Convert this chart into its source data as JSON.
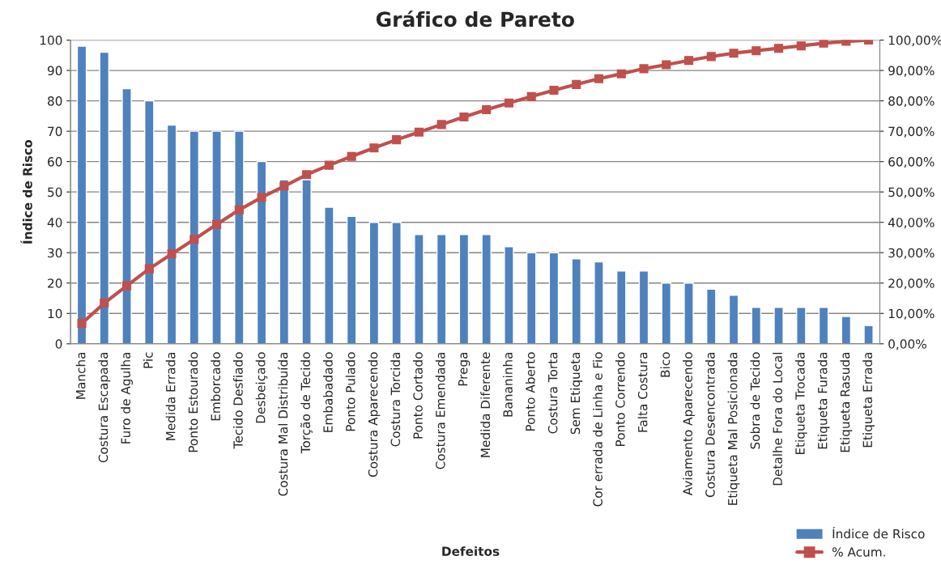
{
  "chart_data": {
    "type": "bar",
    "title": "Gráfico de Pareto",
    "xlabel": "Defeitos",
    "ylabel": "Índice de Risco",
    "categories": [
      "Mancha",
      "Costura Escapada",
      "Furo de Agulha",
      "Pic",
      "Medida Errada",
      "Ponto Estourado",
      "Emborcado",
      "Tecido Desfiado",
      "Desbeiçado",
      "Costura Mal Distribuída",
      "Torção de Tecido",
      "Embabadado",
      "Ponto Pulado",
      "Costura Aparecendo",
      "Costura Torcida",
      "Ponto Cortado",
      "Costura Emendada",
      "Prega",
      "Medida Diferente",
      "Bananinha",
      "Ponto Aberto",
      "Costura Torta",
      "Sem Etiqueta",
      "Cor errada de Linha e Fio",
      "Ponto Correndo",
      "Falta Costura",
      "Bico",
      "Aviamento Aparecendo",
      "Costura Desencontrada",
      "Etiqueta Mal Posicionada",
      "Sobra de Tecido",
      "Detalhe Fora do Local",
      "Etiqueta Trocada",
      "Etiqueta Furada",
      "Etiqueta Rasuda",
      "Etiqueta Errada"
    ],
    "series": [
      {
        "name": "Índice de Risco",
        "color": "#4f81bd",
        "values": [
          98,
          96,
          84,
          80,
          72,
          70,
          70,
          70,
          60,
          54,
          54,
          45,
          42,
          40,
          40,
          36,
          36,
          36,
          36,
          32,
          30,
          30,
          28,
          27,
          24,
          24,
          20,
          20,
          18,
          16,
          12,
          12,
          12,
          12,
          9,
          6
        ]
      },
      {
        "name": "% Acum.",
        "type": "line",
        "axis": "y2",
        "color": "#c0504d",
        "marker": "square",
        "values": [
          6.7,
          13.4,
          19.1,
          24.7,
          29.6,
          34.4,
          39.3,
          44.1,
          48.2,
          51.9,
          55.7,
          58.8,
          61.7,
          64.5,
          67.2,
          69.7,
          72.2,
          74.7,
          77.1,
          79.3,
          81.4,
          83.5,
          85.4,
          87.3,
          88.9,
          90.6,
          91.9,
          93.3,
          94.6,
          95.7,
          96.5,
          97.3,
          98.1,
          99.0,
          99.6,
          100
        ]
      }
    ],
    "ylim": [
      0,
      100
    ],
    "yticks": [
      0,
      10,
      20,
      30,
      40,
      50,
      60,
      70,
      80,
      90,
      100
    ],
    "y2lim": [
      0,
      100
    ],
    "y2ticks": [
      {
        "value": 0,
        "label": "0,00%"
      },
      {
        "value": 10,
        "label": "10,00%"
      },
      {
        "value": 20,
        "label": "20,00%"
      },
      {
        "value": 30,
        "label": "30,00%"
      },
      {
        "value": 40,
        "label": "40,00%"
      },
      {
        "value": 50,
        "label": "50,00%"
      },
      {
        "value": 60,
        "label": "60,00%"
      },
      {
        "value": 70,
        "label": "70,00%"
      },
      {
        "value": 80,
        "label": "80,00%"
      },
      {
        "value": 90,
        "label": "90,00%"
      },
      {
        "value": 100,
        "label": "100,00%"
      }
    ],
    "grid": "y",
    "legend": "bottom right"
  }
}
